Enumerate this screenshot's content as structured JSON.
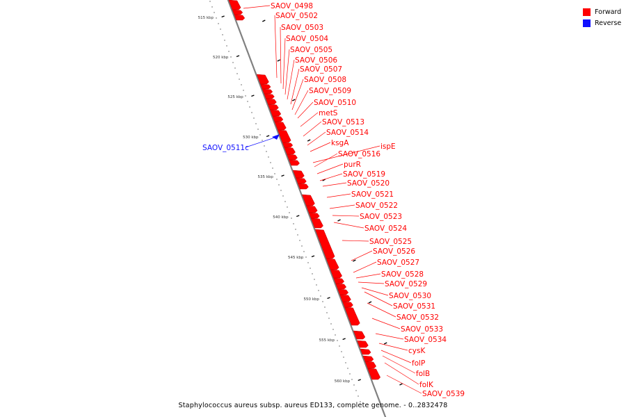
{
  "caption": "Staphylococcus aureus subsp. aureus ED133, complete genome. - 0..2832478",
  "legend": [
    {
      "label": "Forward",
      "color": "#ff0000"
    },
    {
      "label": "Reverse",
      "color": "#1010ff"
    }
  ],
  "colors": {
    "forward": "#ff0000",
    "reverse": "#1010ff",
    "backbone": "#808080"
  },
  "ticks": [
    "515 kbp",
    "520 kbp",
    "525 kbp",
    "530 kbp",
    "535 kbp",
    "540 kbp",
    "545 kbp",
    "550 kbp",
    "555 kbp",
    "560 kbp"
  ],
  "features": [
    {
      "label": "SAOV_0498",
      "strand": "forward"
    },
    {
      "label": "SAOV_0502",
      "strand": "forward"
    },
    {
      "label": "SAOV_0503",
      "strand": "forward"
    },
    {
      "label": "SAOV_0504",
      "strand": "forward"
    },
    {
      "label": "SAOV_0505",
      "strand": "forward"
    },
    {
      "label": "SAOV_0506",
      "strand": "forward"
    },
    {
      "label": "SAOV_0507",
      "strand": "forward"
    },
    {
      "label": "SAOV_0508",
      "strand": "forward"
    },
    {
      "label": "SAOV_0509",
      "strand": "forward"
    },
    {
      "label": "SAOV_0510",
      "strand": "forward"
    },
    {
      "label": "metS",
      "strand": "forward"
    },
    {
      "label": "SAOV_0513",
      "strand": "forward"
    },
    {
      "label": "SAOV_0514",
      "strand": "forward"
    },
    {
      "label": "ksgA",
      "strand": "forward"
    },
    {
      "label": "SAOV_0511c",
      "strand": "reverse"
    },
    {
      "label": "ispE",
      "strand": "forward"
    },
    {
      "label": "SAOV_0516",
      "strand": "forward"
    },
    {
      "label": "purR",
      "strand": "forward"
    },
    {
      "label": "SAOV_0519",
      "strand": "forward"
    },
    {
      "label": "SAOV_0520",
      "strand": "forward"
    },
    {
      "label": "SAOV_0521",
      "strand": "forward"
    },
    {
      "label": "SAOV_0522",
      "strand": "forward"
    },
    {
      "label": "SAOV_0523",
      "strand": "forward"
    },
    {
      "label": "SAOV_0524",
      "strand": "forward"
    },
    {
      "label": "SAOV_0525",
      "strand": "forward"
    },
    {
      "label": "SAOV_0526",
      "strand": "forward"
    },
    {
      "label": "SAOV_0527",
      "strand": "forward"
    },
    {
      "label": "SAOV_0528",
      "strand": "forward"
    },
    {
      "label": "SAOV_0529",
      "strand": "forward"
    },
    {
      "label": "SAOV_0530",
      "strand": "forward"
    },
    {
      "label": "SAOV_0531",
      "strand": "forward"
    },
    {
      "label": "SAOV_0532",
      "strand": "forward"
    },
    {
      "label": "SAOV_0533",
      "strand": "forward"
    },
    {
      "label": "SAOV_0534",
      "strand": "forward"
    },
    {
      "label": "cysK",
      "strand": "forward"
    },
    {
      "label": "folP",
      "strand": "forward"
    },
    {
      "label": "folB",
      "strand": "forward"
    },
    {
      "label": "folK",
      "strand": "forward"
    },
    {
      "label": "SAOV_0539",
      "strand": "forward"
    }
  ]
}
